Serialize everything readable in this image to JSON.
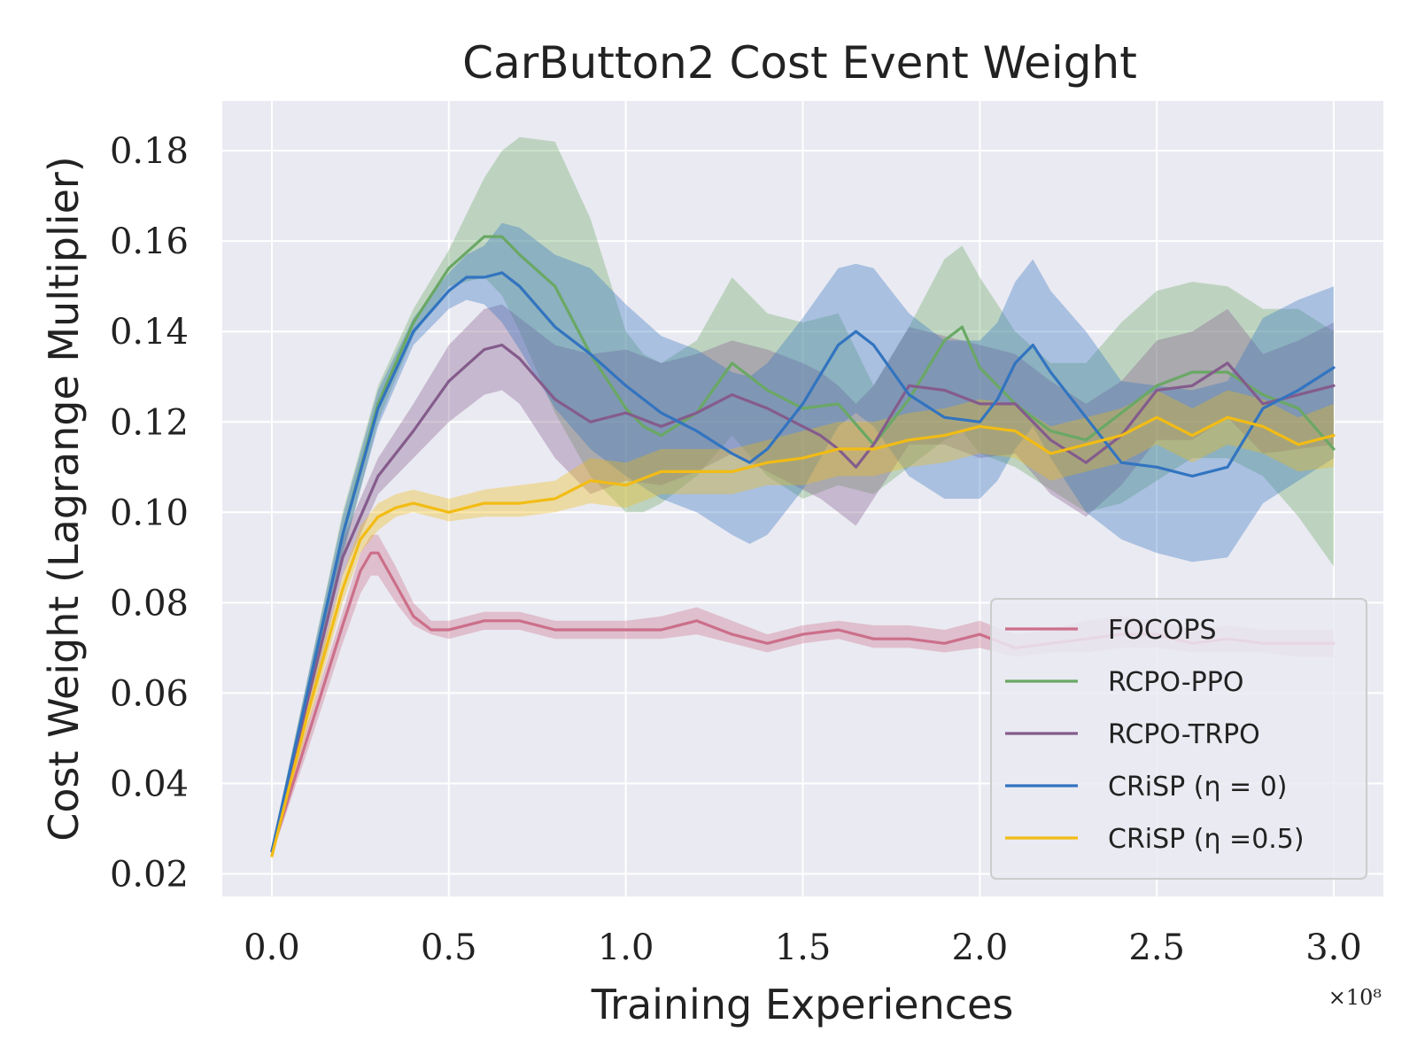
{
  "chart_data": {
    "type": "line",
    "title": "CarButton2 Cost Event Weight",
    "xlabel": "Training Experiences",
    "ylabel": "Cost Weight (Lagrange Multiplier)",
    "x_exponent_label": "×10⁸",
    "xlim": [
      -0.14,
      3.14
    ],
    "ylim": [
      0.015,
      0.191
    ],
    "xticks": [
      0.0,
      0.5,
      1.0,
      1.5,
      2.0,
      2.5,
      3.0
    ],
    "xtick_labels": [
      "0.0",
      "0.5",
      "1.0",
      "1.5",
      "2.0",
      "2.5",
      "3.0"
    ],
    "yticks": [
      0.02,
      0.04,
      0.06,
      0.08,
      0.1,
      0.12,
      0.14,
      0.16,
      0.18
    ],
    "ytick_labels": [
      "0.02",
      "0.04",
      "0.06",
      "0.08",
      "0.10",
      "0.12",
      "0.14",
      "0.16",
      "0.18"
    ],
    "grid": true,
    "legend_position": "lower-right",
    "colors": {
      "background": "#eaeaf2",
      "grid": "#ffffff",
      "FOCOPS": "#cc6f8a",
      "RCPO-PPO": "#6aa865",
      "RCPO-TRPO": "#845c8c",
      "CRiSP (η = 0)": "#3274c0",
      "CRiSP (η =0.5)": "#f2bc14"
    },
    "series": [
      {
        "name": "FOCOPS",
        "x": [
          0.0,
          0.1,
          0.2,
          0.25,
          0.28,
          0.3,
          0.35,
          0.4,
          0.45,
          0.5,
          0.6,
          0.7,
          0.8,
          0.9,
          1.0,
          1.1,
          1.2,
          1.3,
          1.4,
          1.5,
          1.6,
          1.7,
          1.8,
          1.9,
          2.0,
          2.1,
          2.2,
          2.3,
          2.4,
          2.5,
          2.6,
          2.7,
          2.8,
          2.9,
          3.0
        ],
        "mean": [
          0.025,
          0.05,
          0.075,
          0.087,
          0.091,
          0.091,
          0.084,
          0.077,
          0.074,
          0.074,
          0.076,
          0.076,
          0.074,
          0.074,
          0.074,
          0.074,
          0.076,
          0.073,
          0.071,
          0.073,
          0.074,
          0.072,
          0.072,
          0.071,
          0.073,
          0.07,
          0.071,
          0.072,
          0.073,
          0.073,
          0.071,
          0.072,
          0.071,
          0.071,
          0.071
        ],
        "lower": [
          0.024,
          0.047,
          0.071,
          0.082,
          0.086,
          0.086,
          0.08,
          0.075,
          0.073,
          0.072,
          0.074,
          0.074,
          0.072,
          0.072,
          0.072,
          0.072,
          0.073,
          0.071,
          0.069,
          0.071,
          0.072,
          0.07,
          0.07,
          0.069,
          0.07,
          0.068,
          0.069,
          0.069,
          0.07,
          0.07,
          0.069,
          0.069,
          0.069,
          0.068,
          0.068
        ],
        "upper": [
          0.026,
          0.053,
          0.078,
          0.091,
          0.095,
          0.095,
          0.088,
          0.08,
          0.076,
          0.076,
          0.078,
          0.078,
          0.076,
          0.076,
          0.076,
          0.077,
          0.079,
          0.076,
          0.073,
          0.075,
          0.076,
          0.075,
          0.075,
          0.074,
          0.076,
          0.073,
          0.074,
          0.076,
          0.077,
          0.076,
          0.074,
          0.075,
          0.074,
          0.074,
          0.074
        ]
      },
      {
        "name": "RCPO-PPO",
        "x": [
          0.0,
          0.1,
          0.2,
          0.3,
          0.4,
          0.5,
          0.6,
          0.65,
          0.7,
          0.8,
          0.9,
          1.0,
          1.05,
          1.1,
          1.2,
          1.3,
          1.4,
          1.5,
          1.6,
          1.7,
          1.8,
          1.9,
          1.95,
          2.0,
          2.1,
          2.2,
          2.3,
          2.4,
          2.5,
          2.6,
          2.7,
          2.8,
          2.9,
          3.0
        ],
        "mean": [
          0.025,
          0.06,
          0.095,
          0.124,
          0.142,
          0.154,
          0.161,
          0.161,
          0.157,
          0.15,
          0.135,
          0.123,
          0.119,
          0.117,
          0.122,
          0.133,
          0.127,
          0.123,
          0.124,
          0.115,
          0.125,
          0.138,
          0.141,
          0.132,
          0.124,
          0.118,
          0.116,
          0.122,
          0.128,
          0.131,
          0.131,
          0.126,
          0.123,
          0.114
        ],
        "lower": [
          0.024,
          0.057,
          0.09,
          0.12,
          0.139,
          0.15,
          0.152,
          0.148,
          0.14,
          0.122,
          0.108,
          0.1,
          0.1,
          0.102,
          0.108,
          0.117,
          0.108,
          0.103,
          0.106,
          0.104,
          0.11,
          0.116,
          0.118,
          0.113,
          0.11,
          0.105,
          0.1,
          0.102,
          0.107,
          0.112,
          0.112,
          0.108,
          0.099,
          0.088
        ],
        "upper": [
          0.026,
          0.063,
          0.1,
          0.128,
          0.145,
          0.158,
          0.174,
          0.18,
          0.183,
          0.182,
          0.165,
          0.14,
          0.135,
          0.133,
          0.138,
          0.152,
          0.144,
          0.142,
          0.144,
          0.128,
          0.141,
          0.156,
          0.159,
          0.152,
          0.14,
          0.133,
          0.133,
          0.142,
          0.149,
          0.151,
          0.15,
          0.145,
          0.145,
          0.14
        ]
      },
      {
        "name": "RCPO-TRPO",
        "x": [
          0.0,
          0.1,
          0.2,
          0.3,
          0.4,
          0.5,
          0.6,
          0.65,
          0.7,
          0.8,
          0.9,
          1.0,
          1.1,
          1.2,
          1.3,
          1.4,
          1.5,
          1.55,
          1.6,
          1.65,
          1.7,
          1.8,
          1.9,
          2.0,
          2.1,
          2.2,
          2.3,
          2.4,
          2.5,
          2.6,
          2.7,
          2.8,
          2.9,
          3.0
        ],
        "mean": [
          0.025,
          0.058,
          0.09,
          0.108,
          0.118,
          0.129,
          0.136,
          0.137,
          0.134,
          0.125,
          0.12,
          0.122,
          0.119,
          0.122,
          0.126,
          0.123,
          0.119,
          0.117,
          0.114,
          0.11,
          0.115,
          0.128,
          0.127,
          0.124,
          0.124,
          0.116,
          0.111,
          0.117,
          0.127,
          0.128,
          0.133,
          0.124,
          0.126,
          0.128
        ],
        "lower": [
          0.024,
          0.055,
          0.086,
          0.104,
          0.112,
          0.12,
          0.126,
          0.127,
          0.124,
          0.112,
          0.104,
          0.107,
          0.106,
          0.109,
          0.113,
          0.109,
          0.105,
          0.103,
          0.1,
          0.097,
          0.103,
          0.115,
          0.115,
          0.112,
          0.113,
          0.104,
          0.099,
          0.106,
          0.116,
          0.116,
          0.121,
          0.113,
          0.114,
          0.115
        ],
        "upper": [
          0.026,
          0.061,
          0.094,
          0.112,
          0.124,
          0.137,
          0.145,
          0.146,
          0.143,
          0.137,
          0.135,
          0.136,
          0.133,
          0.135,
          0.138,
          0.136,
          0.133,
          0.131,
          0.128,
          0.124,
          0.128,
          0.141,
          0.139,
          0.137,
          0.135,
          0.129,
          0.124,
          0.129,
          0.138,
          0.14,
          0.145,
          0.135,
          0.138,
          0.142
        ]
      },
      {
        "name": "CRiSP (η = 0)",
        "x": [
          0.0,
          0.1,
          0.2,
          0.3,
          0.4,
          0.5,
          0.55,
          0.6,
          0.65,
          0.7,
          0.8,
          0.9,
          1.0,
          1.1,
          1.2,
          1.3,
          1.35,
          1.4,
          1.5,
          1.6,
          1.65,
          1.7,
          1.8,
          1.9,
          2.0,
          2.05,
          2.1,
          2.15,
          2.2,
          2.3,
          2.4,
          2.5,
          2.6,
          2.7,
          2.8,
          2.9,
          3.0
        ],
        "mean": [
          0.025,
          0.06,
          0.095,
          0.123,
          0.14,
          0.149,
          0.152,
          0.152,
          0.153,
          0.15,
          0.141,
          0.135,
          0.128,
          0.122,
          0.118,
          0.113,
          0.111,
          0.114,
          0.124,
          0.137,
          0.14,
          0.137,
          0.126,
          0.121,
          0.12,
          0.125,
          0.133,
          0.137,
          0.131,
          0.121,
          0.111,
          0.11,
          0.108,
          0.11,
          0.123,
          0.127,
          0.132
        ],
        "lower": [
          0.024,
          0.057,
          0.091,
          0.119,
          0.137,
          0.145,
          0.147,
          0.146,
          0.142,
          0.136,
          0.123,
          0.114,
          0.108,
          0.103,
          0.1,
          0.095,
          0.093,
          0.095,
          0.105,
          0.119,
          0.122,
          0.119,
          0.108,
          0.103,
          0.103,
          0.107,
          0.114,
          0.119,
          0.112,
          0.1,
          0.094,
          0.091,
          0.089,
          0.09,
          0.102,
          0.107,
          0.112
        ],
        "upper": [
          0.026,
          0.063,
          0.099,
          0.127,
          0.143,
          0.153,
          0.157,
          0.159,
          0.164,
          0.163,
          0.157,
          0.154,
          0.146,
          0.139,
          0.136,
          0.131,
          0.13,
          0.133,
          0.143,
          0.154,
          0.155,
          0.154,
          0.144,
          0.138,
          0.138,
          0.142,
          0.151,
          0.156,
          0.149,
          0.14,
          0.129,
          0.128,
          0.127,
          0.129,
          0.143,
          0.147,
          0.15
        ]
      },
      {
        "name": "CRiSP (η =0.5)",
        "x": [
          0.0,
          0.1,
          0.2,
          0.25,
          0.3,
          0.35,
          0.4,
          0.5,
          0.6,
          0.7,
          0.8,
          0.9,
          1.0,
          1.1,
          1.2,
          1.3,
          1.4,
          1.5,
          1.6,
          1.7,
          1.8,
          1.9,
          2.0,
          2.1,
          2.2,
          2.3,
          2.4,
          2.5,
          2.6,
          2.7,
          2.8,
          2.9,
          3.0
        ],
        "mean": [
          0.024,
          0.055,
          0.083,
          0.094,
          0.099,
          0.101,
          0.102,
          0.1,
          0.102,
          0.102,
          0.103,
          0.107,
          0.106,
          0.109,
          0.109,
          0.109,
          0.111,
          0.112,
          0.114,
          0.114,
          0.116,
          0.117,
          0.119,
          0.118,
          0.113,
          0.115,
          0.117,
          0.121,
          0.117,
          0.121,
          0.119,
          0.115,
          0.117
        ],
        "lower": [
          0.023,
          0.052,
          0.08,
          0.091,
          0.096,
          0.099,
          0.1,
          0.098,
          0.099,
          0.099,
          0.1,
          0.102,
          0.101,
          0.104,
          0.104,
          0.104,
          0.106,
          0.106,
          0.108,
          0.108,
          0.11,
          0.111,
          0.113,
          0.112,
          0.107,
          0.109,
          0.111,
          0.115,
          0.111,
          0.115,
          0.113,
          0.109,
          0.11
        ],
        "upper": [
          0.025,
          0.058,
          0.086,
          0.097,
          0.102,
          0.104,
          0.105,
          0.103,
          0.105,
          0.106,
          0.107,
          0.112,
          0.111,
          0.114,
          0.114,
          0.114,
          0.116,
          0.118,
          0.12,
          0.12,
          0.122,
          0.123,
          0.125,
          0.124,
          0.119,
          0.121,
          0.123,
          0.127,
          0.123,
          0.127,
          0.125,
          0.121,
          0.124
        ]
      }
    ],
    "legend": [
      "FOCOPS",
      "RCPO-PPO",
      "RCPO-TRPO",
      "CRiSP (η = 0)",
      "CRiSP (η =0.5)"
    ]
  }
}
